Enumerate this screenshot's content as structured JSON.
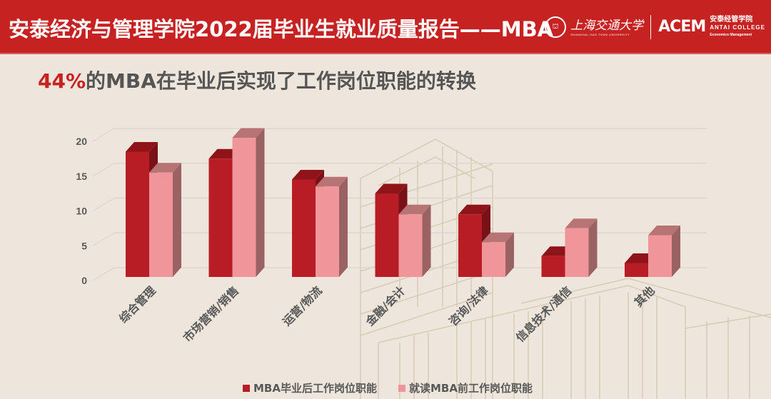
{
  "header": {
    "title": "安泰经济与管理学院2022届毕业生就业质量报告——MBA",
    "logo_sjtu_cn": "上海交通大学",
    "logo_sjtu_en": "SHANGHAI JIAO TONG UNIVERSITY",
    "logo_acem_mark": "ACEM",
    "logo_acem_cn": "安泰经管学院",
    "logo_acem_en": "ANTAI COLLEGE",
    "logo_acem_sub": "Economics·Management"
  },
  "subtitle": {
    "highlight": "44%",
    "text": "的MBA在毕业后实现了工作岗位职能的转换"
  },
  "colors": {
    "header_bg": "#C62222",
    "page_bg": "#EEE6DC",
    "series_after": "#B81C24",
    "series_before": "#F0969A",
    "text": "#595959"
  },
  "chart_data": {
    "type": "bar",
    "title": "44%的MBA在毕业后实现了工作岗位职能的转换",
    "categories": [
      "综合管理",
      "市场营销/销售",
      "运营/物流",
      "金融/会计",
      "咨询/法律",
      "信息技术/通信",
      "其他"
    ],
    "series": [
      {
        "name": "MBA毕业后工作岗位职能",
        "values": [
          18,
          17,
          14,
          12,
          9,
          3,
          2
        ],
        "color": "#B81C24"
      },
      {
        "name": "就读MBA前工作岗位职能",
        "values": [
          15,
          20,
          13,
          9,
          5,
          7,
          6
        ],
        "color": "#F0969A"
      }
    ],
    "yticks": [
      "0",
      "5",
      "10",
      "15",
      "20"
    ],
    "ylim": [
      0,
      20
    ],
    "xlabel": "",
    "ylabel": "",
    "grid": true,
    "style": "3d-clustered-column",
    "legend_position": "bottom"
  },
  "legend": {
    "items": [
      {
        "label": "MBA毕业后工作岗位职能"
      },
      {
        "label": "就读MBA前工作岗位职能"
      }
    ]
  }
}
